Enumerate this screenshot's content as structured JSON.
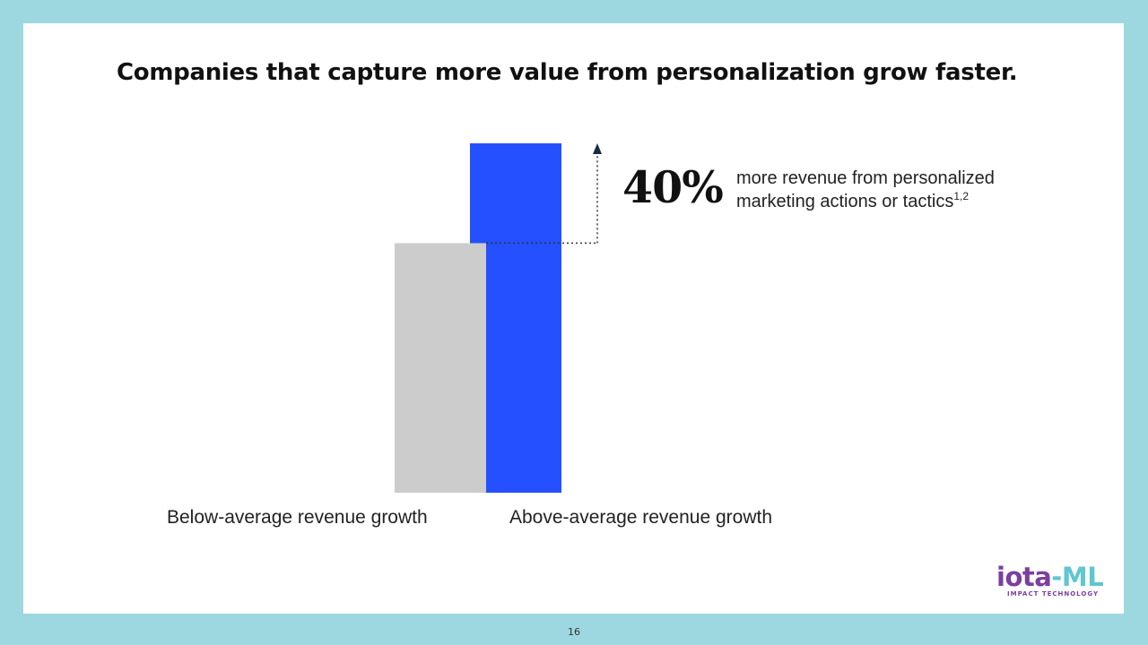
{
  "slide": {
    "title": "Companies that capture more value from personalization grow faster.",
    "page_number": "16"
  },
  "chart_data": {
    "type": "bar",
    "categories": [
      "Below-average revenue growth",
      "Above-average revenue growth"
    ],
    "values": [
      100,
      140
    ],
    "ylim": [
      0,
      140
    ],
    "grid": false,
    "colors": [
      "#cccccc",
      "#2450ff"
    ],
    "annotation": {
      "value": "40%",
      "line1": "more revenue from personalized",
      "line2": "marketing actions or tactics",
      "footnote": "1,2"
    }
  },
  "logo": {
    "part1": "iota",
    "part2": "-ML",
    "tagline": "IMPACT TECHNOLOGY",
    "colors": [
      "#7b3fa0",
      "#5fc7d0"
    ]
  }
}
